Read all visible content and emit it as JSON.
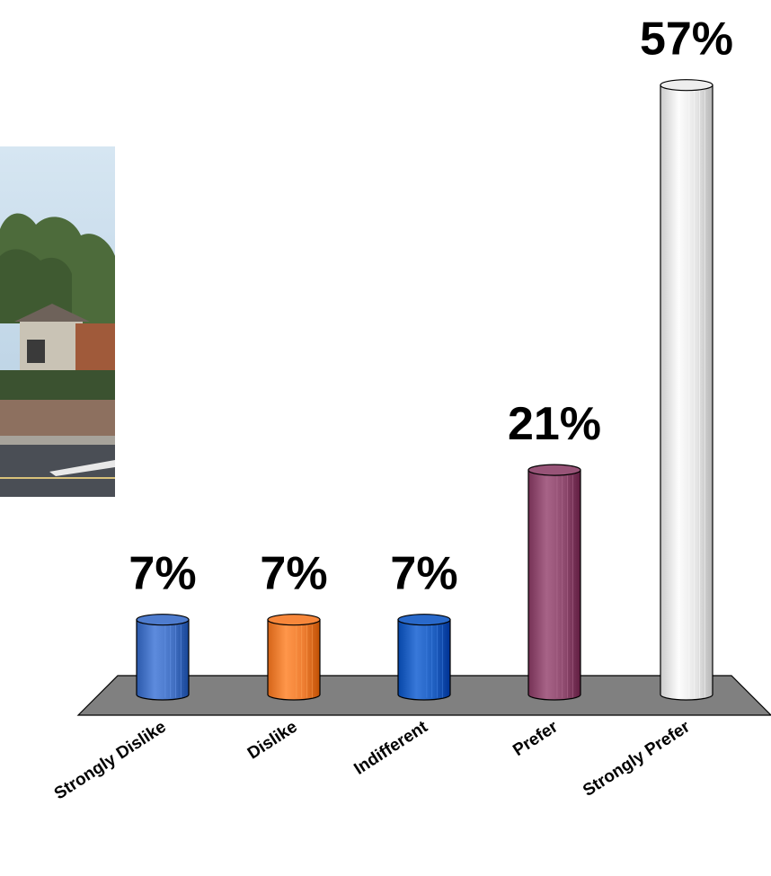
{
  "chart_data": {
    "type": "bar",
    "title": "",
    "xlabel": "",
    "ylabel": "",
    "ylim": [
      0,
      57
    ],
    "grid": false,
    "legend": "none",
    "style": "3d-cylinder",
    "categories": [
      "Strongly Dislike",
      "Dislike",
      "Indifferent",
      "Prefer",
      "Strongly Prefer"
    ],
    "values": [
      7,
      7,
      7,
      21,
      57
    ],
    "data_labels": [
      "7%",
      "7%",
      "7%",
      "21%",
      "57%"
    ],
    "colors": [
      "#4472C4",
      "#ED7D31",
      "#1F5FC0",
      "#8E4A6E",
      "#E4E4E4"
    ],
    "floor_color": "#808080"
  },
  "photo": {
    "kind": "street-scene-photo",
    "description_icon": "house-street-photo-icon",
    "colors": {
      "sky": "#b9d3e6",
      "trees": "#4a6a3a",
      "house": "#c7c1b2",
      "wall": "#8c6f5e",
      "road": "#4a4e55"
    }
  }
}
